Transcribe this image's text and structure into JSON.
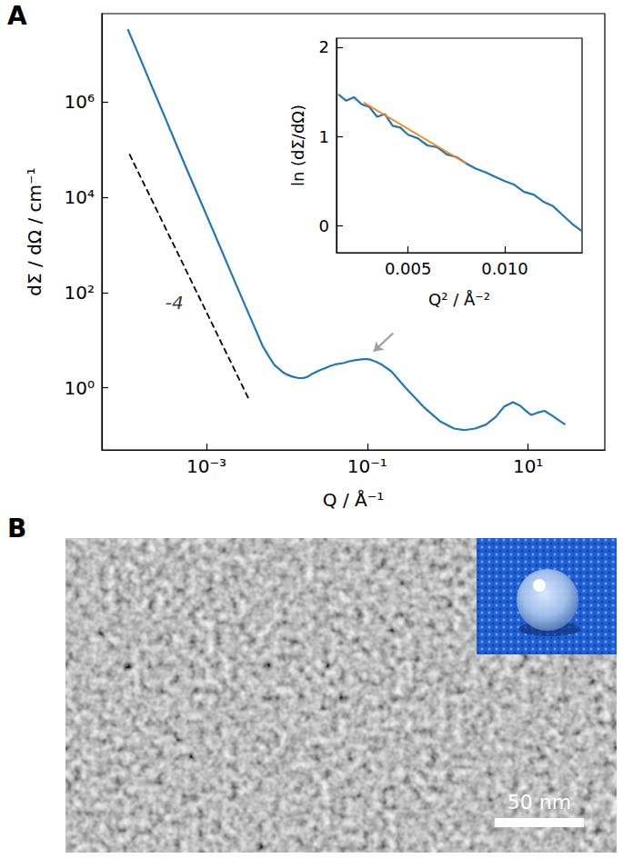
{
  "panels": [
    {
      "label": "A"
    },
    {
      "label": "B",
      "scale_bar": "50 nm"
    }
  ],
  "chart_data": [
    {
      "type": "line",
      "log": true,
      "grid": false,
      "x_label": "Q / Å⁻¹",
      "y_label": "dΣ / dΩ / cm⁻¹",
      "xlim": [
        5e-05,
        90
      ],
      "ylim": [
        0.05,
        70000000
      ],
      "xticks": [
        {
          "value": 0.001,
          "label": "10⁻³"
        },
        {
          "value": 0.1,
          "label": "10⁻¹"
        },
        {
          "value": 10,
          "label": "10¹"
        }
      ],
      "yticks": [
        {
          "value": 1,
          "label": "10⁰"
        },
        {
          "value": 100,
          "label": "10²"
        },
        {
          "value": 10000,
          "label": "10⁴"
        },
        {
          "value": 1000000,
          "label": "10⁶"
        }
      ],
      "series": [
        {
          "color": "#1f77b4",
          "line_style": "solid",
          "x": [
            0.000105,
            0.00015,
            0.0002,
            0.0003,
            0.0005,
            0.0007,
            0.001,
            0.0015,
            0.002,
            0.003,
            0.004,
            0.005,
            0.006,
            0.007,
            0.008,
            0.009,
            0.01,
            0.012,
            0.014,
            0.016,
            0.018,
            0.02,
            0.025,
            0.03,
            0.035,
            0.04,
            0.05,
            0.06,
            0.07,
            0.08,
            0.09,
            0.1,
            0.11,
            0.13,
            0.15,
            0.2,
            0.3,
            0.5,
            0.8,
            1.2,
            1.6,
            2.2,
            3,
            4,
            5,
            6.5,
            8,
            10,
            11,
            13,
            16,
            20,
            25,
            29
          ],
          "values": [
            33000000,
            8000000,
            2500000,
            500000,
            64000,
            17000,
            4200,
            850,
            270,
            55,
            18,
            7.5,
            4.5,
            3.0,
            2.5,
            2.1,
            1.9,
            1.7,
            1.6,
            1.6,
            1.7,
            1.9,
            2.3,
            2.6,
            2.9,
            3.1,
            3.3,
            3.6,
            3.8,
            3.9,
            4.0,
            4.0,
            3.9,
            3.5,
            3.1,
            2.2,
            1.0,
            0.4,
            0.2,
            0.14,
            0.13,
            0.14,
            0.17,
            0.25,
            0.4,
            0.5,
            0.42,
            0.3,
            0.27,
            0.3,
            0.33,
            0.26,
            0.2,
            0.17
          ]
        },
        {
          "color": "#000000",
          "line_style": "dashed",
          "x": [
            0.00011,
            0.0034
          ],
          "values": [
            80000,
            0.56
          ]
        }
      ],
      "annotations": [
        {
          "text": "-4",
          "x": 0.0004,
          "y": 60
        }
      ],
      "arrows": [
        {
          "color": "#a0a0a0",
          "x": [
            0.21,
            0.12
          ],
          "values": [
            14,
            5.8
          ]
        }
      ]
    },
    {
      "type": "line",
      "grid": false,
      "x_label": "Q² / Å⁻²",
      "y_label": "ln (dΣ/dΩ)",
      "xlim": [
        0.0013,
        0.014
      ],
      "ylim": [
        -0.3,
        2.1
      ],
      "xticks": [
        0.005,
        {
          "value": 0.01,
          "label": "0.010"
        }
      ],
      "yticks": [
        0,
        1,
        2
      ],
      "series": [
        {
          "color": "#1f77b4",
          "line_style": "solid",
          "x": [
            0.0014,
            0.0018,
            0.0022,
            0.0026,
            0.003,
            0.0034,
            0.0038,
            0.0042,
            0.0046,
            0.005,
            0.0055,
            0.006,
            0.0065,
            0.007,
            0.0075,
            0.008,
            0.0085,
            0.009,
            0.0095,
            0.01,
            0.0105,
            0.011,
            0.0115,
            0.012,
            0.0125,
            0.013,
            0.0135,
            0.014
          ],
          "values": [
            1.47,
            1.4,
            1.44,
            1.36,
            1.33,
            1.22,
            1.25,
            1.12,
            1.1,
            1.02,
            0.98,
            0.9,
            0.88,
            0.8,
            0.77,
            0.7,
            0.64,
            0.6,
            0.55,
            0.5,
            0.46,
            0.38,
            0.35,
            0.27,
            0.22,
            0.12,
            0.02,
            -0.06
          ]
        },
        {
          "color": "#ff7f0e",
          "line_style": "solid",
          "x": [
            0.0027,
            0.008
          ],
          "values": [
            1.38,
            0.7
          ]
        }
      ]
    }
  ]
}
